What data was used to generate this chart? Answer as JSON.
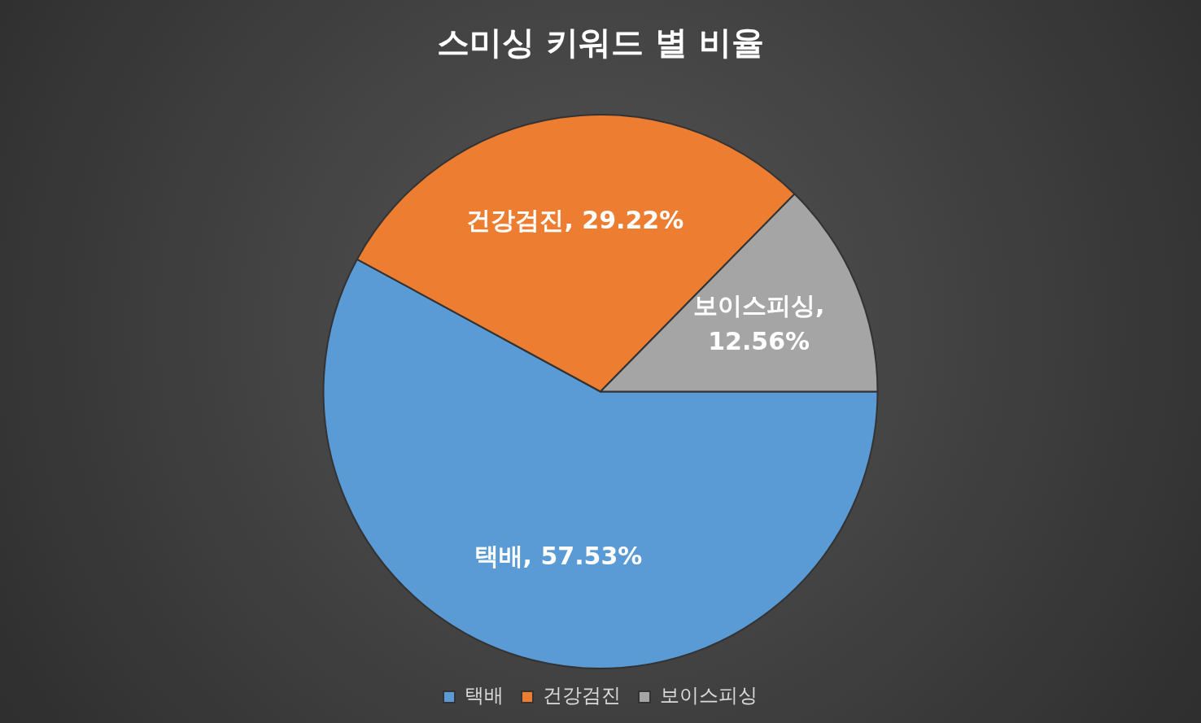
{
  "chart_data": {
    "type": "pie",
    "title": "스미싱 키워드 별 비율",
    "categories": [
      "택배",
      "건강검진",
      "보이스피싱"
    ],
    "values": [
      57.53,
      29.22,
      12.56
    ],
    "value_labels": [
      "택배, 57.53%",
      "건강검진, 29.22%",
      "보이스피싱, 12.56%"
    ],
    "colors": [
      "#5b9bd5",
      "#ed7d31",
      "#a5a5a5"
    ],
    "legend": "bottom"
  }
}
